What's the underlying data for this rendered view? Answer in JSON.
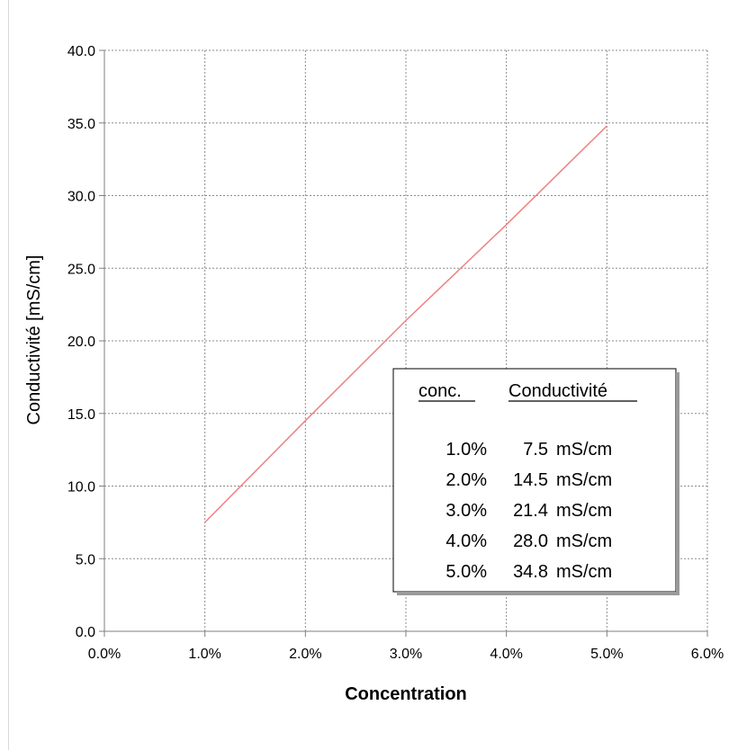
{
  "chart_data": {
    "type": "line",
    "xlabel": "Concentration",
    "ylabel": "Conductivité [mS/cm]",
    "xlim": [
      0.0,
      6.0
    ],
    "ylim": [
      0.0,
      40.0
    ],
    "x_ticks": [
      "0.0%",
      "1.0%",
      "2.0%",
      "3.0%",
      "4.0%",
      "5.0%",
      "6.0%"
    ],
    "y_ticks": [
      "0.0",
      "5.0",
      "10.0",
      "15.0",
      "20.0",
      "25.0",
      "30.0",
      "35.0",
      "40.0"
    ],
    "grid": true,
    "series": [
      {
        "x": [
          1.0,
          2.0,
          3.0,
          4.0,
          5.0
        ],
        "values": [
          7.5,
          14.5,
          21.4,
          28.0,
          34.8
        ],
        "color": "#f08080"
      }
    ],
    "table": {
      "header_conc": "conc.",
      "header_cond": "Conductivité",
      "rows": [
        {
          "conc": "1.0%",
          "value": "7.5",
          "unit": "mS/cm"
        },
        {
          "conc": "2.0%",
          "value": "14.5",
          "unit": "mS/cm"
        },
        {
          "conc": "3.0%",
          "value": "21.4",
          "unit": "mS/cm"
        },
        {
          "conc": "4.0%",
          "value": "28.0",
          "unit": "mS/cm"
        },
        {
          "conc": "5.0%",
          "value": "34.8",
          "unit": "mS/cm"
        }
      ]
    }
  }
}
